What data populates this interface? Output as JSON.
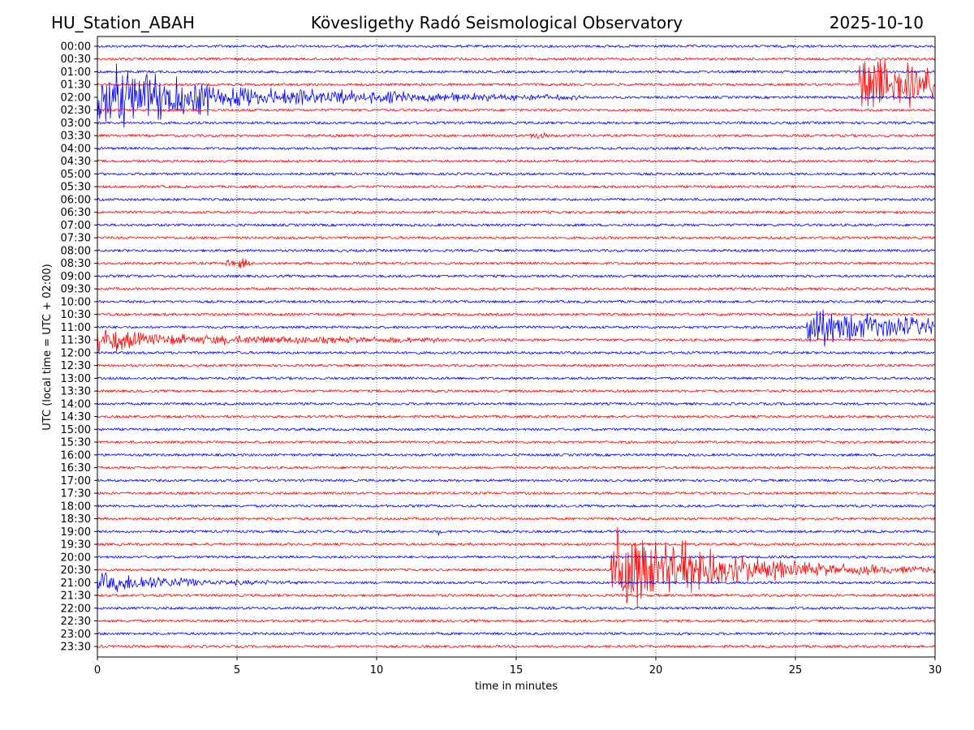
{
  "title": {
    "station": "HU_Station_ABAH",
    "observatory": "Kövesligethy Radó Seismological Observatory",
    "date": "2025-10-10"
  },
  "chart_data": {
    "type": "line",
    "subtype": "helicorder",
    "xlabel": "time in minutes",
    "ylabel": "UTC (local time = UTC + 02:00)",
    "xlim": [
      0,
      30
    ],
    "xticks": [
      0,
      5,
      10,
      15,
      20,
      25,
      30
    ],
    "xtick_labels": [
      "0",
      "5",
      "10",
      "15",
      "20",
      "25",
      "30"
    ],
    "grid": "vertical dotted",
    "colors": [
      "#0000ff",
      "#ff0000"
    ],
    "rows": [
      "00:00",
      "00:30",
      "01:00",
      "01:30",
      "02:00",
      "02:30",
      "03:00",
      "03:30",
      "04:00",
      "04:30",
      "05:00",
      "05:30",
      "06:00",
      "06:30",
      "07:00",
      "07:30",
      "08:00",
      "08:30",
      "09:00",
      "09:30",
      "10:00",
      "10:30",
      "11:00",
      "11:30",
      "12:00",
      "12:30",
      "13:00",
      "13:30",
      "14:00",
      "14:30",
      "15:00",
      "15:30",
      "16:00",
      "16:30",
      "17:00",
      "17:30",
      "18:00",
      "18:30",
      "19:00",
      "19:30",
      "20:00",
      "20:30",
      "21:00",
      "21:30",
      "22:00",
      "22:30",
      "23:00",
      "23:30"
    ],
    "noise_amplitude": 0.1,
    "events": [
      {
        "row": "02:00",
        "start": 0,
        "end": 4.2,
        "amplitude": 2.0
      },
      {
        "row": "02:00",
        "start": 4.2,
        "end": 12,
        "amplitude": 0.6
      },
      {
        "row": "02:00",
        "start": 12,
        "end": 17.5,
        "amplitude": 0.3
      },
      {
        "row": "01:30",
        "start": 27.3,
        "end": 30,
        "amplitude": 2.2
      },
      {
        "row": "03:30",
        "start": 15.5,
        "end": 16.2,
        "amplitude": 0.3
      },
      {
        "row": "08:30",
        "start": 4.6,
        "end": 5.5,
        "amplitude": 0.4
      },
      {
        "row": "11:00",
        "start": 25.4,
        "end": 26.5,
        "amplitude": 1.8
      },
      {
        "row": "11:00",
        "start": 26.5,
        "end": 30,
        "amplitude": 1.0
      },
      {
        "row": "11:30",
        "start": 0,
        "end": 1.6,
        "amplitude": 0.9
      },
      {
        "row": "11:30",
        "start": 1.6,
        "end": 10.5,
        "amplitude": 0.35
      },
      {
        "row": "11:30",
        "start": 10.5,
        "end": 15,
        "amplitude": 0.2
      },
      {
        "row": "20:30",
        "start": 18.4,
        "end": 22.3,
        "amplitude": 2.6
      },
      {
        "row": "20:30",
        "start": 22.3,
        "end": 25.5,
        "amplitude": 0.9
      },
      {
        "row": "20:30",
        "start": 25.5,
        "end": 30,
        "amplitude": 0.4
      },
      {
        "row": "21:00",
        "start": 0,
        "end": 3.6,
        "amplitude": 0.6
      },
      {
        "row": "21:00",
        "start": 3.6,
        "end": 7.5,
        "amplitude": 0.2
      },
      {
        "row": "19:00",
        "start": 12.2,
        "end": 12.3,
        "amplitude": 0.5
      }
    ]
  }
}
